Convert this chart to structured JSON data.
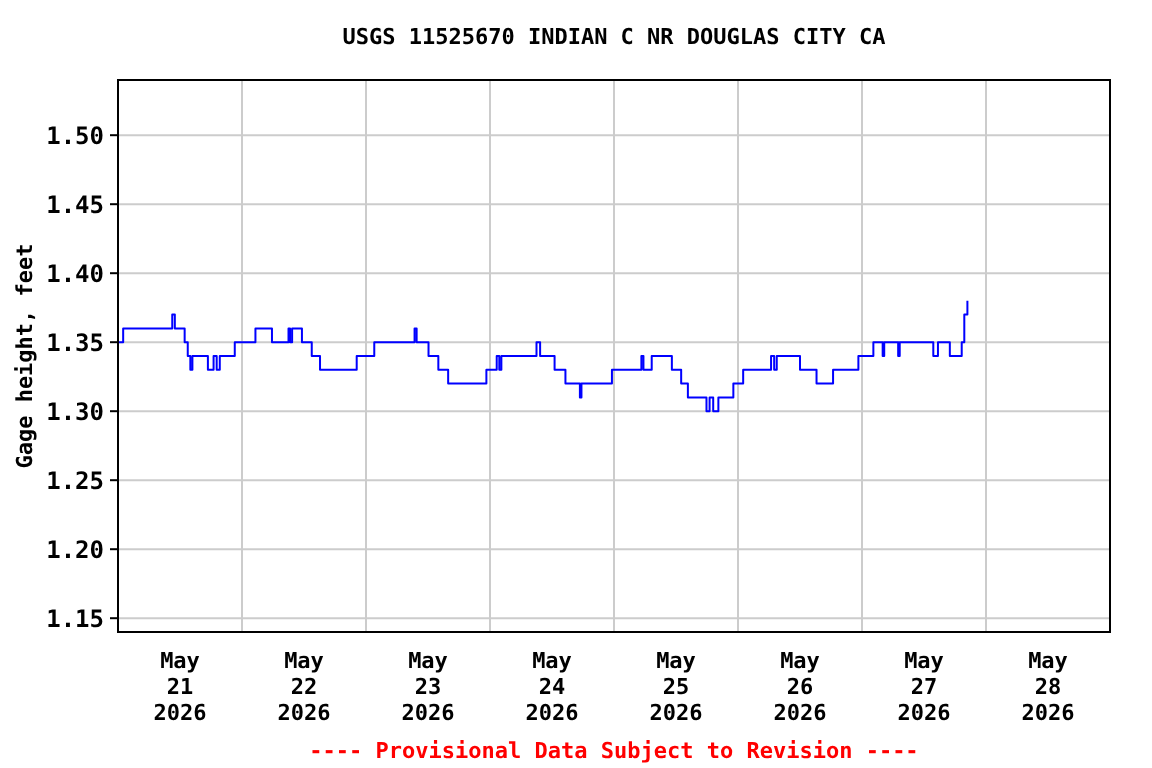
{
  "chart_data": {
    "type": "step",
    "title": "USGS 11525670 INDIAN C NR DOUGLAS CITY CA",
    "ylabel": "Gage height, feet",
    "annotations": [
      "---- Provisional Data Subject to Revision ----"
    ],
    "xlim": [
      "2026-05-21T00:00",
      "2026-05-29T00:00"
    ],
    "xticks": [
      {
        "value": "2026-05-21T00:00",
        "label": null
      },
      {
        "value": "2026-05-21T12:00",
        "label": "May\n21\n2026"
      },
      {
        "value": "2026-05-22T00:00",
        "label": null
      },
      {
        "value": "2026-05-22T12:00",
        "label": "May\n22\n2026"
      },
      {
        "value": "2026-05-23T00:00",
        "label": null
      },
      {
        "value": "2026-05-23T12:00",
        "label": "May\n23\n2026"
      },
      {
        "value": "2026-05-24T00:00",
        "label": null
      },
      {
        "value": "2026-05-24T12:00",
        "label": "May\n24\n2026"
      },
      {
        "value": "2026-05-25T00:00",
        "label": null
      },
      {
        "value": "2026-05-25T12:00",
        "label": "May\n25\n2026"
      },
      {
        "value": "2026-05-26T00:00",
        "label": null
      },
      {
        "value": "2026-05-26T12:00",
        "label": "May\n26\n2026"
      },
      {
        "value": "2026-05-27T00:00",
        "label": null
      },
      {
        "value": "2026-05-27T12:00",
        "label": "May\n27\n2026"
      },
      {
        "value": "2026-05-28T00:00",
        "label": null
      },
      {
        "value": "2026-05-28T12:00",
        "label": "May\n28\n2026"
      },
      {
        "value": "2026-05-29T00:00",
        "label": null
      }
    ],
    "ylim": [
      1.14,
      1.54
    ],
    "yticks": [
      {
        "value": 1.15,
        "label": "1.15"
      },
      {
        "value": 1.2,
        "label": "1.20"
      },
      {
        "value": 1.25,
        "label": "1.25"
      },
      {
        "value": 1.3,
        "label": "1.30"
      },
      {
        "value": 1.35,
        "label": "1.35"
      },
      {
        "value": 1.4,
        "label": "1.40"
      },
      {
        "value": 1.45,
        "label": "1.45"
      },
      {
        "value": 1.5,
        "label": "1.50"
      }
    ],
    "grid": true,
    "marker": "none",
    "line_style": "solid",
    "series": [
      {
        "color": "#0000ff",
        "x": [
          "2026-05-21T00:00",
          "2026-05-21T01:00",
          "2026-05-21T10:30",
          "2026-05-21T11:00",
          "2026-05-21T12:54",
          "2026-05-21T13:30",
          "2026-05-21T14:00",
          "2026-05-21T14:24",
          "2026-05-21T17:24",
          "2026-05-21T18:30",
          "2026-05-21T19:06",
          "2026-05-21T19:42",
          "2026-05-21T22:36",
          "2026-05-22T02:36",
          "2026-05-22T05:48",
          "2026-05-22T09:00",
          "2026-05-22T09:18",
          "2026-05-22T09:42",
          "2026-05-22T11:36",
          "2026-05-22T13:30",
          "2026-05-22T15:06",
          "2026-05-22T22:12",
          "2026-05-23T01:36",
          "2026-05-23T09:24",
          "2026-05-23T09:48",
          "2026-05-23T12:06",
          "2026-05-23T14:00",
          "2026-05-23T15:54",
          "2026-05-23T23:18",
          "2026-05-24T01:18",
          "2026-05-24T01:48",
          "2026-05-24T02:12",
          "2026-05-24T09:00",
          "2026-05-24T09:42",
          "2026-05-24T12:30",
          "2026-05-24T14:36",
          "2026-05-24T17:24",
          "2026-05-24T17:42",
          "2026-05-24T23:36",
          "2026-05-25T05:18",
          "2026-05-25T05:42",
          "2026-05-25T07:18",
          "2026-05-25T11:12",
          "2026-05-25T13:00",
          "2026-05-25T14:18",
          "2026-05-25T17:54",
          "2026-05-25T18:30",
          "2026-05-25T19:12",
          "2026-05-25T20:12",
          "2026-05-25T23:06",
          "2026-05-26T01:00",
          "2026-05-26T06:24",
          "2026-05-26T07:00",
          "2026-05-26T07:30",
          "2026-05-26T12:00",
          "2026-05-26T15:12",
          "2026-05-26T18:24",
          "2026-05-26T23:18",
          "2026-05-27T02:12",
          "2026-05-27T04:00",
          "2026-05-27T04:18",
          "2026-05-27T07:00",
          "2026-05-27T07:18",
          "2026-05-27T13:48",
          "2026-05-27T14:42",
          "2026-05-27T17:00",
          "2026-05-27T19:18",
          "2026-05-27T19:48",
          "2026-05-27T20:24"
        ],
        "values": [
          1.35,
          1.36,
          1.37,
          1.36,
          1.35,
          1.34,
          1.33,
          1.34,
          1.33,
          1.34,
          1.33,
          1.34,
          1.35,
          1.36,
          1.35,
          1.36,
          1.35,
          1.36,
          1.35,
          1.34,
          1.33,
          1.34,
          1.35,
          1.36,
          1.35,
          1.34,
          1.33,
          1.32,
          1.33,
          1.34,
          1.33,
          1.34,
          1.35,
          1.34,
          1.33,
          1.32,
          1.31,
          1.32,
          1.33,
          1.34,
          1.33,
          1.34,
          1.33,
          1.32,
          1.31,
          1.3,
          1.31,
          1.3,
          1.31,
          1.32,
          1.33,
          1.34,
          1.33,
          1.34,
          1.33,
          1.32,
          1.33,
          1.34,
          1.35,
          1.34,
          1.35,
          1.34,
          1.35,
          1.34,
          1.35,
          1.34,
          1.35,
          1.37,
          1.38
        ]
      }
    ]
  }
}
